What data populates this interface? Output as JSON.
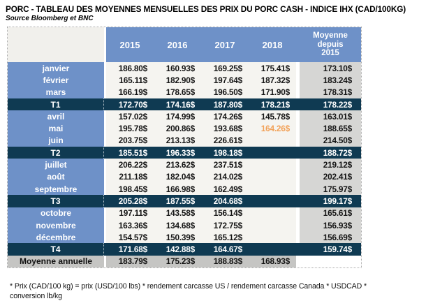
{
  "title": "PORC - TABLEAU DES MOYENNES MENSUELLES DES PRIX DU PORC CASH - INDICE IHX (CAD/100KG)",
  "source": "Source Bloomberg et BNC",
  "footnote": "* Prix (CAD/100 kg) = prix (USD/100 lbs) * rendement carcasse US / rendement carcasse Canada * USDCAD * conversion lb/kg",
  "colors": {
    "header_blue": "#6E91C8",
    "quarter_navy": "#0F3A52",
    "cell_bg": "#F5F4F0",
    "moyenne_col_bg": "#D6D6D4",
    "annual_row_bg": "#C5C5C3",
    "highlight_orange": "#F2A158"
  },
  "chart_data": {
    "type": "table",
    "title": "PORC - TABLEAU DES MOYENNES MENSUELLES DES PRIX DU PORC CASH - INDICE IHX (CAD/100KG)",
    "subtitle": "Source Bloomberg et BNC",
    "columns": [
      "2015",
      "2016",
      "2017",
      "2018",
      "Moyenne\ndepuis\n2015"
    ],
    "rows": [
      {
        "label": "janvier",
        "type": "month",
        "values": [
          "186.80$",
          "160.93$",
          "169.25$",
          "175.41$",
          "173.10$"
        ]
      },
      {
        "label": "février",
        "type": "month",
        "values": [
          "165.11$",
          "182.90$",
          "197.64$",
          "187.32$",
          "183.24$"
        ]
      },
      {
        "label": "mars",
        "type": "month",
        "values": [
          "166.19$",
          "178.65$",
          "196.50$",
          "171.90$",
          "178.31$"
        ]
      },
      {
        "label": "T1",
        "type": "quarter",
        "values": [
          "172.70$",
          "174.16$",
          "187.80$",
          "178.21$",
          "178.22$"
        ]
      },
      {
        "label": "avril",
        "type": "month",
        "values": [
          "157.02$",
          "174.99$",
          "174.26$",
          "145.78$",
          "163.01$"
        ]
      },
      {
        "label": "mai",
        "type": "month",
        "values": [
          "195.78$",
          "200.86$",
          "193.68$",
          "164.26$",
          "188.65$"
        ],
        "highlight_col": 3,
        "highlight_color": "#F2A158"
      },
      {
        "label": "juin",
        "type": "month",
        "values": [
          "203.75$",
          "213.13$",
          "226.61$",
          "",
          "214.50$"
        ]
      },
      {
        "label": "T2",
        "type": "quarter",
        "values": [
          "185.51$",
          "196.33$",
          "198.18$",
          "",
          "188.72$"
        ]
      },
      {
        "label": "juillet",
        "type": "month",
        "values": [
          "206.22$",
          "213.62$",
          "237.51$",
          "",
          "219.12$"
        ]
      },
      {
        "label": "août",
        "type": "month",
        "values": [
          "211.18$",
          "182.04$",
          "214.02$",
          "",
          "202.41$"
        ]
      },
      {
        "label": "septembre",
        "type": "month",
        "values": [
          "198.45$",
          "166.98$",
          "162.49$",
          "",
          "175.97$"
        ]
      },
      {
        "label": "T3",
        "type": "quarter",
        "values": [
          "205.28$",
          "187.55$",
          "204.68$",
          "",
          "199.17$"
        ]
      },
      {
        "label": "octobre",
        "type": "month",
        "values": [
          "197.11$",
          "143.58$",
          "156.14$",
          "",
          "165.61$"
        ]
      },
      {
        "label": "novembre",
        "type": "month",
        "values": [
          "163.36$",
          "134.68$",
          "172.75$",
          "",
          "156.93$"
        ]
      },
      {
        "label": "décembre",
        "type": "month",
        "values": [
          "154.57$",
          "150.39$",
          "165.12$",
          "",
          "156.69$"
        ]
      },
      {
        "label": "T4",
        "type": "quarter",
        "values": [
          "171.68$",
          "142.88$",
          "164.67$",
          "",
          "159.74$"
        ]
      },
      {
        "label": "Moyenne annuelle",
        "type": "annual",
        "values": [
          "183.79$",
          "175.23$",
          "188.83$",
          "168.93$",
          ""
        ]
      }
    ]
  }
}
